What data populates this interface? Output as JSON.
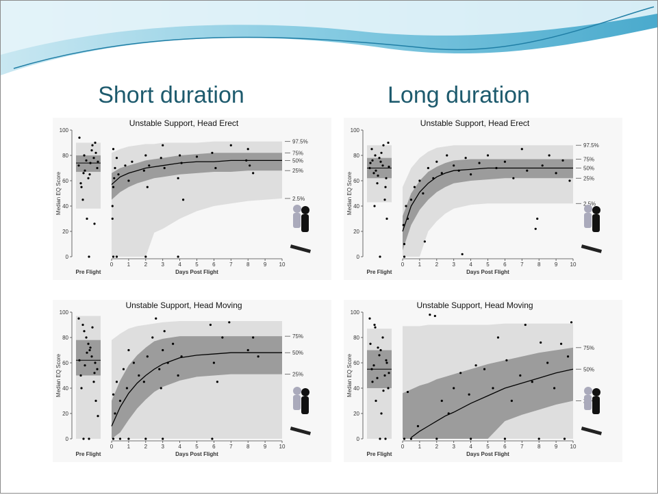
{
  "slide": {
    "headings": [
      "Short duration",
      "Long duration"
    ]
  },
  "chart_data": [
    {
      "type": "scatter",
      "title": "Unstable Support, Head Erect",
      "x_label": "Days Post Flight",
      "y_label": "Median EQ Score",
      "pre_label": "Pre Flight",
      "xlim": [
        0,
        10
      ],
      "xticks": [
        0,
        1,
        2,
        3,
        4,
        5,
        6,
        7,
        8,
        9,
        10
      ],
      "ylim": [
        0,
        100
      ],
      "yticks": [
        0,
        20,
        40,
        60,
        80,
        100
      ],
      "point_color": "#000000",
      "x": [
        0,
        0.5,
        1,
        1.5,
        2,
        2.5,
        3,
        4,
        5,
        6,
        7,
        8,
        9,
        10
      ],
      "series": [
        {
          "name": "97.5%",
          "pre": 90,
          "values": [
            82,
            85,
            87,
            88,
            89,
            89,
            90,
            90,
            90,
            91,
            91,
            91,
            91,
            91
          ]
        },
        {
          "name": "75%",
          "pre": 80,
          "values": [
            66,
            70,
            72,
            74,
            76,
            77,
            78,
            80,
            81,
            82,
            82,
            82,
            82,
            82
          ]
        },
        {
          "name": "50%",
          "pre": 74,
          "values": [
            57,
            63,
            66,
            68,
            70,
            71,
            72,
            74,
            75,
            75,
            76,
            76,
            76,
            76
          ]
        },
        {
          "name": "25%",
          "pre": 67,
          "values": [
            45,
            51,
            55,
            58,
            60,
            62,
            63,
            65,
            66,
            67,
            67,
            68,
            68,
            68
          ]
        },
        {
          "name": "2.5%",
          "pre": 38,
          "values": [
            0,
            0,
            0,
            0,
            0,
            19,
            22,
            30,
            36,
            40,
            42,
            44,
            45,
            46
          ]
        }
      ],
      "points": {
        "x": [
          0.05,
          0.1,
          0.15,
          0.2,
          0.3,
          0.1,
          0.05,
          0.4,
          0.8,
          1.0,
          1.2,
          1.9,
          2.0,
          2.1,
          2.2,
          2.9,
          3.0,
          3.1,
          3.9,
          4.0,
          4.1,
          4.2,
          5.0,
          5.9,
          6.1,
          7.0,
          7.9,
          8.0,
          8.1,
          8.3,
          0.1,
          0.3,
          2.0,
          3.9
        ],
        "y": [
          40,
          55,
          62,
          70,
          78,
          85,
          30,
          65,
          72,
          60,
          75,
          68,
          80,
          55,
          72,
          78,
          88,
          70,
          62,
          80,
          74,
          45,
          79,
          82,
          70,
          88,
          76,
          85,
          72,
          66,
          0,
          0,
          0,
          0
        ]
      },
      "pre_points": [
        72,
        80,
        65,
        90,
        58,
        76,
        84,
        70,
        45,
        62,
        78,
        94,
        68,
        74,
        82,
        55,
        30,
        88,
        75,
        66,
        0,
        26
      ]
    },
    {
      "type": "scatter",
      "title": "Unstable Support, Head Erect",
      "x_label": "Days Post Flight",
      "y_label": "Median EQ Score",
      "pre_label": "Pre Flight",
      "xlim": [
        0,
        10
      ],
      "xticks": [
        0,
        1,
        2,
        3,
        4,
        5,
        6,
        7,
        8,
        9,
        10
      ],
      "ylim": [
        0,
        100
      ],
      "yticks": [
        0,
        20,
        40,
        60,
        80,
        100
      ],
      "point_color": "#000000",
      "x": [
        0,
        0.5,
        1,
        1.5,
        2,
        2.5,
        3,
        4,
        5,
        6,
        7,
        8,
        9,
        10
      ],
      "series": [
        {
          "name": "97.5%",
          "pre": 88,
          "values": [
            55,
            70,
            78,
            83,
            86,
            87,
            88,
            88,
            88,
            88,
            88,
            88,
            88,
            88
          ]
        },
        {
          "name": "75%",
          "pre": 78,
          "values": [
            32,
            50,
            60,
            67,
            71,
            74,
            76,
            77,
            77,
            77,
            77,
            77,
            77,
            77
          ]
        },
        {
          "name": "50%",
          "pre": 70,
          "values": [
            20,
            40,
            51,
            58,
            63,
            66,
            68,
            69,
            70,
            70,
            70,
            70,
            70,
            70
          ]
        },
        {
          "name": "25%",
          "pre": 62,
          "values": [
            5,
            25,
            37,
            45,
            51,
            55,
            58,
            60,
            61,
            62,
            62,
            62,
            62,
            62
          ]
        },
        {
          "name": "2.5%",
          "pre": 43,
          "values": [
            0,
            0,
            0,
            20,
            28,
            34,
            38,
            41,
            42,
            42,
            42,
            42,
            42,
            42
          ]
        }
      ],
      "points": {
        "x": [
          0.05,
          0.1,
          0.2,
          0.3,
          0.5,
          0.7,
          1.0,
          1.2,
          1.5,
          1.8,
          2.0,
          2.3,
          2.6,
          3.0,
          3.3,
          3.7,
          4.0,
          4.5,
          5.0,
          5.5,
          6.0,
          6.5,
          7.0,
          7.3,
          7.8,
          8.2,
          8.6,
          9.0,
          9.4,
          9.8,
          0.1,
          1.3,
          3.5,
          7.9
        ],
        "y": [
          25,
          10,
          40,
          30,
          45,
          55,
          60,
          50,
          70,
          62,
          75,
          66,
          80,
          72,
          68,
          78,
          65,
          74,
          80,
          70,
          75,
          62,
          85,
          68,
          22,
          72,
          80,
          66,
          76,
          60,
          0,
          12,
          2,
          30
        ]
      },
      "pre_points": [
        70,
        80,
        75,
        62,
        85,
        58,
        72,
        90,
        66,
        78,
        45,
        74,
        68,
        82,
        30,
        76,
        64,
        88,
        71,
        40,
        0,
        55
      ]
    },
    {
      "type": "scatter",
      "title": "Unstable Support, Head Moving",
      "x_label": "Days Post Flight",
      "y_label": "Median EQ Score",
      "pre_label": "Pre Flight",
      "xlim": [
        0,
        10
      ],
      "xticks": [
        0,
        1,
        2,
        3,
        4,
        5,
        6,
        7,
        8,
        9,
        10
      ],
      "ylim": [
        0,
        100
      ],
      "yticks": [
        0,
        20,
        40,
        60,
        80,
        100
      ],
      "point_color": "#000000",
      "x": [
        0,
        0.5,
        1,
        1.5,
        2,
        2.5,
        3,
        4,
        5,
        6,
        7,
        8,
        9,
        10
      ],
      "series": [
        {
          "name": null,
          "pre": 97,
          "values": [
            78,
            83,
            87,
            89,
            90,
            91,
            92,
            93,
            93,
            93,
            93,
            93,
            93,
            93
          ]
        },
        {
          "name": "75%",
          "pre": 78,
          "values": [
            30,
            46,
            58,
            66,
            72,
            77,
            79,
            81,
            81,
            81,
            81,
            81,
            81,
            81
          ]
        },
        {
          "name": "50%",
          "pre": 62,
          "values": [
            10,
            25,
            36,
            44,
            50,
            55,
            59,
            64,
            66,
            67,
            68,
            68,
            68,
            68
          ]
        },
        {
          "name": "25%",
          "pre": 50,
          "values": [
            0,
            5,
            15,
            24,
            31,
            37,
            41,
            46,
            49,
            50,
            51,
            51,
            51,
            51
          ]
        },
        {
          "name": null,
          "pre": 0,
          "values": [
            0,
            0,
            0,
            0,
            0,
            0,
            0,
            0,
            0,
            0,
            0,
            0,
            0,
            0
          ]
        }
      ],
      "points": {
        "x": [
          0.1,
          0.2,
          0.3,
          0.5,
          0.7,
          0.9,
          1.0,
          1.3,
          1.6,
          1.9,
          2.1,
          2.4,
          2.6,
          2.8,
          2.9,
          3.0,
          3.1,
          3.3,
          3.6,
          3.9,
          4.1,
          5.8,
          6.0,
          6.2,
          6.5,
          6.9,
          8.0,
          8.3,
          8.6,
          0.1,
          0.5,
          1.0,
          2.0,
          3.0,
          5.9
        ],
        "y": [
          35,
          20,
          45,
          30,
          55,
          40,
          70,
          60,
          50,
          45,
          65,
          80,
          95,
          55,
          40,
          70,
          85,
          60,
          75,
          50,
          65,
          90,
          60,
          45,
          80,
          92,
          70,
          80,
          65,
          0,
          0,
          0,
          0,
          0,
          0
        ]
      },
      "pre_points": [
        95,
        85,
        70,
        60,
        50,
        80,
        65,
        55,
        90,
        75,
        45,
        62,
        58,
        72,
        30,
        40,
        68,
        88,
        18,
        0,
        0,
        52
      ]
    },
    {
      "type": "scatter",
      "title": "Unstable Support, Head Moving",
      "x_label": "Days Post Flight",
      "y_label": "Median EQ Score",
      "pre_label": "Pre Flight",
      "xlim": [
        0,
        10
      ],
      "xticks": [
        0,
        1,
        2,
        3,
        4,
        5,
        6,
        7,
        8,
        9,
        10
      ],
      "ylim": [
        0,
        100
      ],
      "yticks": [
        0,
        20,
        40,
        60,
        80,
        100
      ],
      "point_color": "#000000",
      "x": [
        0,
        0.5,
        1,
        1.5,
        2,
        2.5,
        3,
        4,
        5,
        6,
        7,
        8,
        9,
        10
      ],
      "series": [
        {
          "name": null,
          "pre": 87,
          "values": [
            89,
            89,
            89,
            90,
            90,
            90,
            90,
            90,
            90,
            91,
            91,
            91,
            91,
            91
          ]
        },
        {
          "name": "75%",
          "pre": 70,
          "values": [
            36,
            39,
            42,
            44,
            47,
            49,
            51,
            55,
            59,
            62,
            65,
            68,
            70,
            72
          ]
        },
        {
          "name": "50%",
          "pre": 55,
          "values": [
            null,
            1,
            6,
            10,
            14,
            18,
            21,
            28,
            34,
            40,
            44,
            48,
            52,
            55
          ]
        },
        {
          "name": "25%",
          "pre": 40,
          "values": [
            0,
            0,
            0,
            0,
            0,
            0,
            0,
            0,
            0,
            14,
            19,
            23,
            27,
            30
          ]
        },
        {
          "name": null,
          "pre": 0,
          "values": [
            0,
            0,
            0,
            0,
            0,
            0,
            0,
            0,
            0,
            0,
            0,
            0,
            0,
            0
          ]
        }
      ],
      "points": {
        "x": [
          0.3,
          0.9,
          1.6,
          1.9,
          2.3,
          2.7,
          3.0,
          3.4,
          3.9,
          4.3,
          4.8,
          5.3,
          5.6,
          6.1,
          6.4,
          6.9,
          7.2,
          7.6,
          8.1,
          8.5,
          8.9,
          9.3,
          9.7,
          9.9,
          0.1,
          0.5,
          2.0,
          4.0,
          6.0,
          8.0,
          9.5
        ],
        "y": [
          37,
          10,
          98,
          97,
          30,
          20,
          40,
          52,
          35,
          58,
          55,
          40,
          80,
          62,
          30,
          50,
          90,
          45,
          76,
          60,
          40,
          75,
          65,
          92,
          0,
          0,
          0,
          0,
          0,
          0,
          0
        ]
      },
      "pre_points": [
        95,
        88,
        70,
        62,
        55,
        48,
        80,
        40,
        58,
        66,
        50,
        75,
        30,
        20,
        60,
        45,
        72,
        38,
        52,
        90,
        0,
        0
      ]
    }
  ]
}
